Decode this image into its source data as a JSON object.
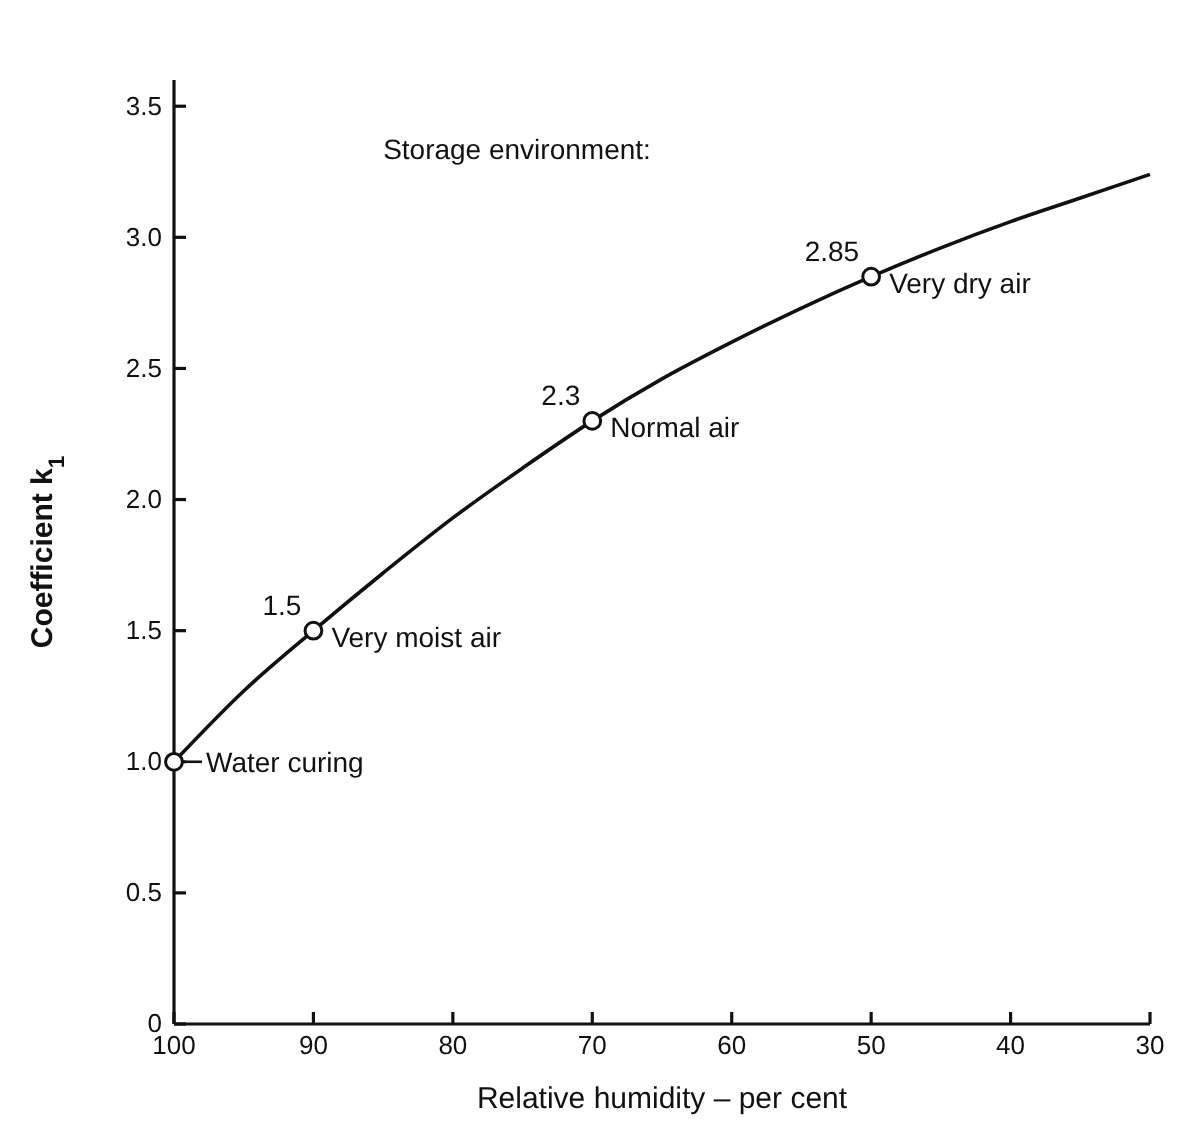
{
  "chart_data": {
    "type": "line",
    "xlabel": "Relative humidity – per cent",
    "ylabel": "Coefficient k$_{1}$",
    "xlim": [
      100,
      30
    ],
    "ylim": [
      0,
      3.6
    ],
    "xticks": [
      100,
      90,
      80,
      70,
      60,
      50,
      40,
      30
    ],
    "yticks": [
      0,
      0.5,
      {
        "value": 1,
        "label": "1.0"
      },
      1.5,
      {
        "value": 2,
        "label": "2.0"
      },
      2.5,
      {
        "value": 3,
        "label": "3.0"
      },
      3.5
    ],
    "grid": false,
    "series": [
      {
        "color": "#111111",
        "marker": "none",
        "x": [
          100,
          95,
          90,
          85,
          80,
          75,
          70,
          65,
          60,
          55,
          50,
          45,
          40,
          35,
          30
        ],
        "values": [
          1.0,
          1.27,
          1.5,
          1.72,
          1.93,
          2.12,
          2.3,
          2.46,
          2.6,
          2.73,
          2.85,
          2.96,
          3.06,
          3.15,
          3.24
        ]
      },
      {
        "type": "scatter",
        "color": "#111111",
        "marker": "circle",
        "x": [
          100,
          90,
          70,
          50
        ],
        "values": [
          1.0,
          1.5,
          2.3,
          2.85
        ],
        "value_labels": [
          null,
          "1.5",
          "2.3",
          "2.85"
        ]
      }
    ],
    "annotations": [
      "Storage environment:",
      {
        "text": "Water curing",
        "x": 100,
        "y": 1.0
      },
      {
        "text": "Very moist air",
        "x": 90,
        "y": 1.5
      },
      {
        "text": "Normal air",
        "x": 70,
        "y": 2.3
      },
      {
        "text": "Very dry air",
        "x": 50,
        "y": 2.85
      }
    ]
  }
}
